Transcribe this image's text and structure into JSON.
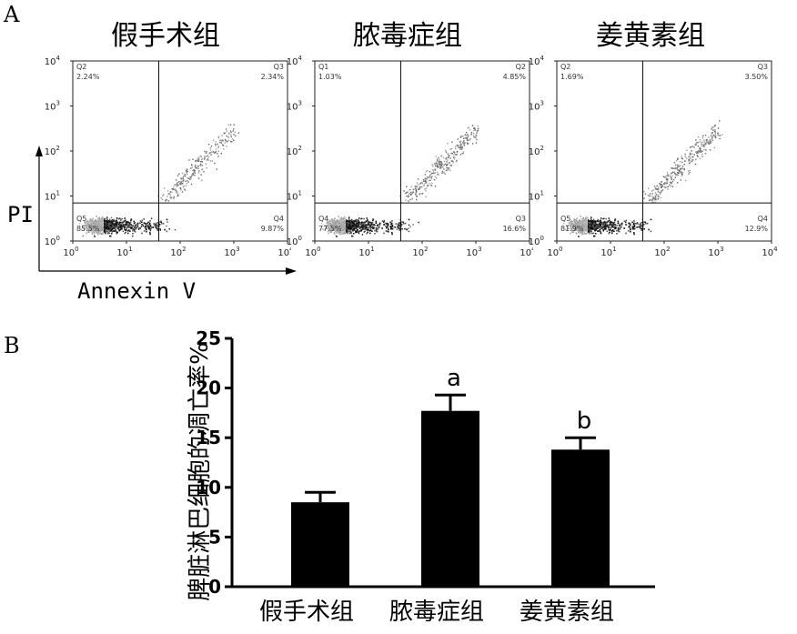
{
  "panel_a_label": "A",
  "panel_b_label": "B",
  "flow_axis": {
    "y_title": "PI",
    "x_title": "Annexin V"
  },
  "flow_ticks": {
    "x": [
      {
        "base": "10",
        "exp": "0"
      },
      {
        "base": "10",
        "exp": "1"
      },
      {
        "base": "10",
        "exp": "2"
      },
      {
        "base": "10",
        "exp": "3"
      },
      {
        "base": "10",
        "exp": "4"
      }
    ],
    "y": [
      {
        "base": "10",
        "exp": "0"
      },
      {
        "base": "10",
        "exp": "1"
      },
      {
        "base": "10",
        "exp": "2"
      },
      {
        "base": "10",
        "exp": "3"
      },
      {
        "base": "10",
        "exp": "4"
      }
    ]
  },
  "chart_data": [
    {
      "type": "scatter",
      "title": "假手术组",
      "x_scale": "log",
      "y_scale": "log",
      "xlim": [
        1,
        10000
      ],
      "ylim": [
        1,
        10000
      ],
      "quadrants": [
        {
          "name": "Q2",
          "value": "2.24%",
          "pos": "top-left"
        },
        {
          "name": "Q3",
          "value": "2.34%",
          "pos": "top-right"
        },
        {
          "name": "Q5",
          "value": "85.5%",
          "pos": "bottom-left"
        },
        {
          "name": "Q4",
          "value": "9.87%",
          "pos": "bottom-right"
        }
      ],
      "gate": {
        "x": 40,
        "y": 7
      }
    },
    {
      "type": "scatter",
      "title": "脓毒症组",
      "x_scale": "log",
      "y_scale": "log",
      "xlim": [
        1,
        10000
      ],
      "ylim": [
        1,
        10000
      ],
      "quadrants": [
        {
          "name": "Q1",
          "value": "1.03%",
          "pos": "top-left"
        },
        {
          "name": "Q2",
          "value": "4.85%",
          "pos": "top-right"
        },
        {
          "name": "Q4",
          "value": "77.5%",
          "pos": "bottom-left"
        },
        {
          "name": "Q3",
          "value": "16.6%",
          "pos": "bottom-right"
        }
      ],
      "gate": {
        "x": 40,
        "y": 7
      }
    },
    {
      "type": "scatter",
      "title": "姜黄素组",
      "x_scale": "log",
      "y_scale": "log",
      "xlim": [
        1,
        10000
      ],
      "ylim": [
        1,
        10000
      ],
      "quadrants": [
        {
          "name": "Q2",
          "value": "1.69%",
          "pos": "top-left"
        },
        {
          "name": "Q3",
          "value": "3.50%",
          "pos": "top-right"
        },
        {
          "name": "Q5",
          "value": "81.9%",
          "pos": "bottom-left"
        },
        {
          "name": "Q4",
          "value": "12.9%",
          "pos": "bottom-right"
        }
      ],
      "gate": {
        "x": 40,
        "y": 7
      }
    },
    {
      "type": "bar",
      "categories": [
        "假手术组",
        "脓毒症组",
        "姜黄素组"
      ],
      "values": [
        8.5,
        17.7,
        13.8
      ],
      "errors": [
        1.0,
        1.6,
        1.2
      ],
      "annotations": [
        "",
        "a",
        "b"
      ],
      "ylabel": "脾脏淋巴细胞的凋亡率%",
      "ylim": [
        0,
        25
      ],
      "yticks": [
        "0",
        "5",
        "10",
        "15",
        "20",
        "25"
      ]
    }
  ]
}
